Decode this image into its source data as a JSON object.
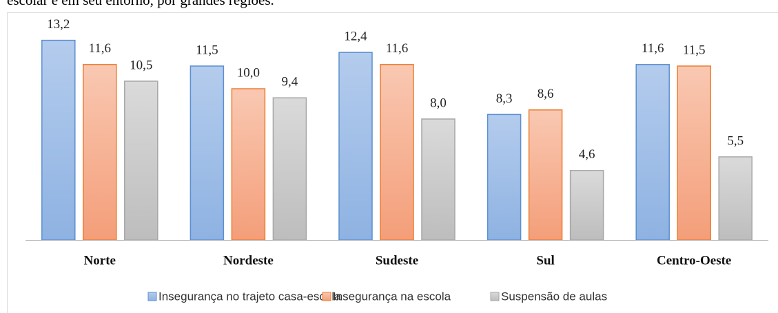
{
  "chart_data": {
    "type": "bar",
    "title": "escolar e em seu entorno, por grandes regiões.",
    "categories": [
      "Norte",
      "Nordeste",
      "Sudeste",
      "Sul",
      "Centro-Oeste"
    ],
    "series": [
      {
        "name": "Insegurança no trajeto casa-escola",
        "color": "#5b8fd0",
        "values": [
          13.2,
          11.5,
          12.4,
          8.3,
          11.6
        ],
        "value_labels": [
          "13,2",
          "11,5",
          "12,4",
          "8,3",
          "11,6"
        ]
      },
      {
        "name": "Insegurança na escola",
        "color": "#ed7d31",
        "values": [
          11.6,
          10.0,
          11.6,
          8.6,
          11.5
        ],
        "value_labels": [
          "11,6",
          "10,0",
          "11,6",
          "8,6",
          "11,5"
        ]
      },
      {
        "name": "Suspensão de aulas",
        "color": "#a6a6a6",
        "values": [
          10.5,
          9.4,
          8.0,
          4.6,
          5.5
        ],
        "value_labels": [
          "10,5",
          "9,4",
          "8,0",
          "4,6",
          "5,5"
        ]
      }
    ],
    "ylim": [
      0,
      14
    ],
    "legend": "bottom"
  }
}
